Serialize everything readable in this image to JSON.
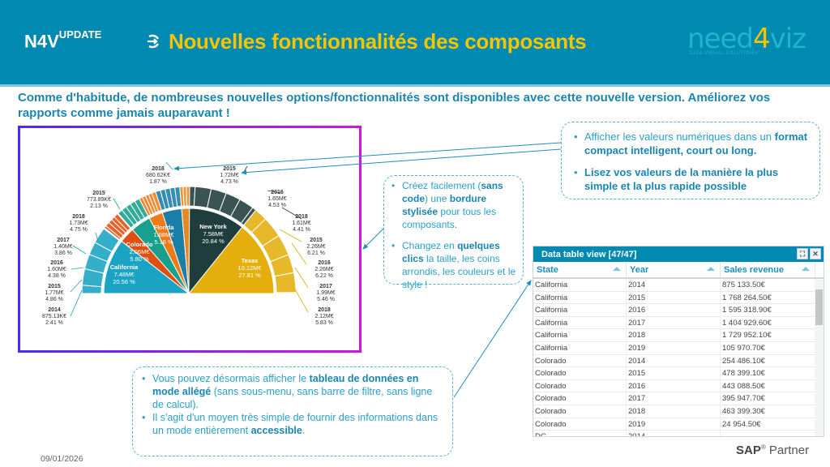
{
  "header": {
    "brand": "N4V",
    "brand_sup": "UPDATE",
    "title": "Nouvelles fonctionnalités des composants",
    "logo": {
      "part1": "need",
      "part2": "4",
      "part3": "viz",
      "tagline": "DATA VISUAL SOLUTIONS"
    }
  },
  "intro": "Comme d'habitude, de nombreuses nouvelles options/fonctionnalités sont disponibles avec cette nouvelle version. Améliorez vos rapports comme jamais auparavant !",
  "chart_data": {
    "type": "sunburst",
    "states": [
      {
        "name": "California",
        "value": "7.48M€",
        "pct": 20.56,
        "color": "#1aa3c2",
        "years": [
          2.41,
          4.86,
          4.38,
          3.86,
          4.75,
          0.3
        ]
      },
      {
        "name": "Colorado",
        "value": "2.06M€",
        "pct": 5.8,
        "color": "#e04f0f",
        "years": [
          0.7,
          1.3,
          1.2,
          1.1,
          1.3,
          0.2
        ]
      },
      {
        "name": "",
        "value": "",
        "pct": 7.5,
        "color": "#17a08c",
        "years": [
          1.5,
          1.5,
          1.5,
          1.5,
          1.5
        ]
      },
      {
        "name": "Florida",
        "value": "1.88M€",
        "pct": 5.16,
        "color": "#ef7a1a",
        "years": [
          1.0,
          1.0,
          1.0,
          1.0,
          1.16
        ]
      },
      {
        "name": "",
        "value": "",
        "pct": 7.2,
        "color": "#1a7ea6",
        "years": [
          1.44,
          1.44,
          1.44,
          1.44,
          1.44
        ]
      },
      {
        "name": "",
        "value": "",
        "pct": 2.9,
        "color": "#e8891f",
        "years": [
          0.97,
          0.97,
          0.96
        ]
      },
      {
        "name": "New York",
        "value": "7.58M€",
        "pct": 20.84,
        "color": "#1f3d3d",
        "years": [
          1.6,
          4.73,
          4.53,
          4.4,
          4.41,
          1.17
        ]
      },
      {
        "name": "Texas",
        "value": "10.12M€",
        "pct": 27.81,
        "color": "#e4ae0c",
        "years": [
          3.8,
          6.21,
          6.22,
          5.46,
          5.83,
          0.29
        ]
      }
    ],
    "labels": [
      {
        "year": "2018",
        "value": "680.62K€",
        "pct": "1.87 %"
      },
      {
        "year": "2015",
        "value": "1.72M€",
        "pct": "4.73 %"
      },
      {
        "year": "2016",
        "value": "1.65M€",
        "pct": "4.53 %"
      },
      {
        "year": "2018",
        "value": "1.61M€",
        "pct": "4.41 %"
      },
      {
        "year": "2015",
        "value": "2.26M€",
        "pct": "6.21 %"
      },
      {
        "year": "2016",
        "value": "2.26M€",
        "pct": "6.22 %"
      },
      {
        "year": "2017",
        "value": "1.99M€",
        "pct": "5.46 %"
      },
      {
        "year": "2018",
        "value": "2.12M€",
        "pct": "5.83 %"
      },
      {
        "year": "2015",
        "value": "773.89K€",
        "pct": "2.13 %"
      },
      {
        "year": "2018",
        "value": "1.73M€",
        "pct": "4.75 %"
      },
      {
        "year": "2017",
        "value": "1.40M€",
        "pct": "3.86 %"
      },
      {
        "year": "2016",
        "value": "1.60M€",
        "pct": "4.38 %"
      },
      {
        "year": "2015",
        "value": "1.77M€",
        "pct": "4.86 %"
      },
      {
        "year": "2014",
        "value": "875.13K€",
        "pct": "2.41 %"
      }
    ],
    "inner_labels": [
      {
        "name": "California",
        "value": "7.48M€",
        "pct": "20.56 %"
      },
      {
        "name": "Colorado",
        "value": "2.06M€",
        "pct": "5.80 %"
      },
      {
        "name": "Florida",
        "value": "1.88M€",
        "pct": "5.16 %"
      },
      {
        "name": "New York",
        "value": "7.58M€",
        "pct": "20.84 %"
      },
      {
        "name": "Texas",
        "value": "10.12M€",
        "pct": "27.81 %"
      }
    ]
  },
  "callouts": {
    "c1": {
      "a1": "Afficher les valeurs numériques dans un ",
      "a2": "format compact intelligent, court ou long.",
      "b1": "Lisez vos valeurs de la manière la plus simple et la plus rapide possible"
    },
    "c2": {
      "a1": "Créez facilement (",
      "a2": "sans code",
      "a3": ") une ",
      "a4": "bordure stylisée",
      "a5": " pour tous les composants.",
      "b1": "Changez en ",
      "b2": "quelques clics",
      "b3": " la taille, les coins arrondis, les couleurs et le style !"
    },
    "c3": {
      "a1": "Vous pouvez désormais afficher le ",
      "a2": "tableau de données en mode allégé",
      "a3": " (sans sous-menu, sans barre de filtre, sans ligne de calcul).",
      "b1": "Il s'agit d'un moyen très simple de fournir des informations dans un mode entièrement ",
      "b2": "accessible",
      "b3": "."
    }
  },
  "table": {
    "title": "Data table view [47/47]",
    "columns": [
      "State",
      "Year",
      "Sales revenue"
    ],
    "rows": [
      [
        "California",
        "2014",
        "875 133.50€"
      ],
      [
        "California",
        "2015",
        "1 768 264.50€"
      ],
      [
        "California",
        "2016",
        "1 595 318.90€"
      ],
      [
        "California",
        "2017",
        "1 404 929.60€"
      ],
      [
        "California",
        "2018",
        "1 729 952.10€"
      ],
      [
        "California",
        "2019",
        "105 970.70€"
      ],
      [
        "Colorado",
        "2014",
        "254 486.10€"
      ],
      [
        "Colorado",
        "2015",
        "478 399.10€"
      ],
      [
        "Colorado",
        "2016",
        "443 088.50€"
      ],
      [
        "Colorado",
        "2017",
        "395 947.70€"
      ],
      [
        "Colorado",
        "2018",
        "463 399.30€"
      ],
      [
        "Colorado",
        "2019",
        "24 954.50€"
      ],
      [
        "DC",
        "2014",
        ""
      ]
    ]
  },
  "footer": {
    "date": "09/01/2026",
    "sap": "SAP",
    "sap_reg": "®",
    "partner": " Partner"
  }
}
